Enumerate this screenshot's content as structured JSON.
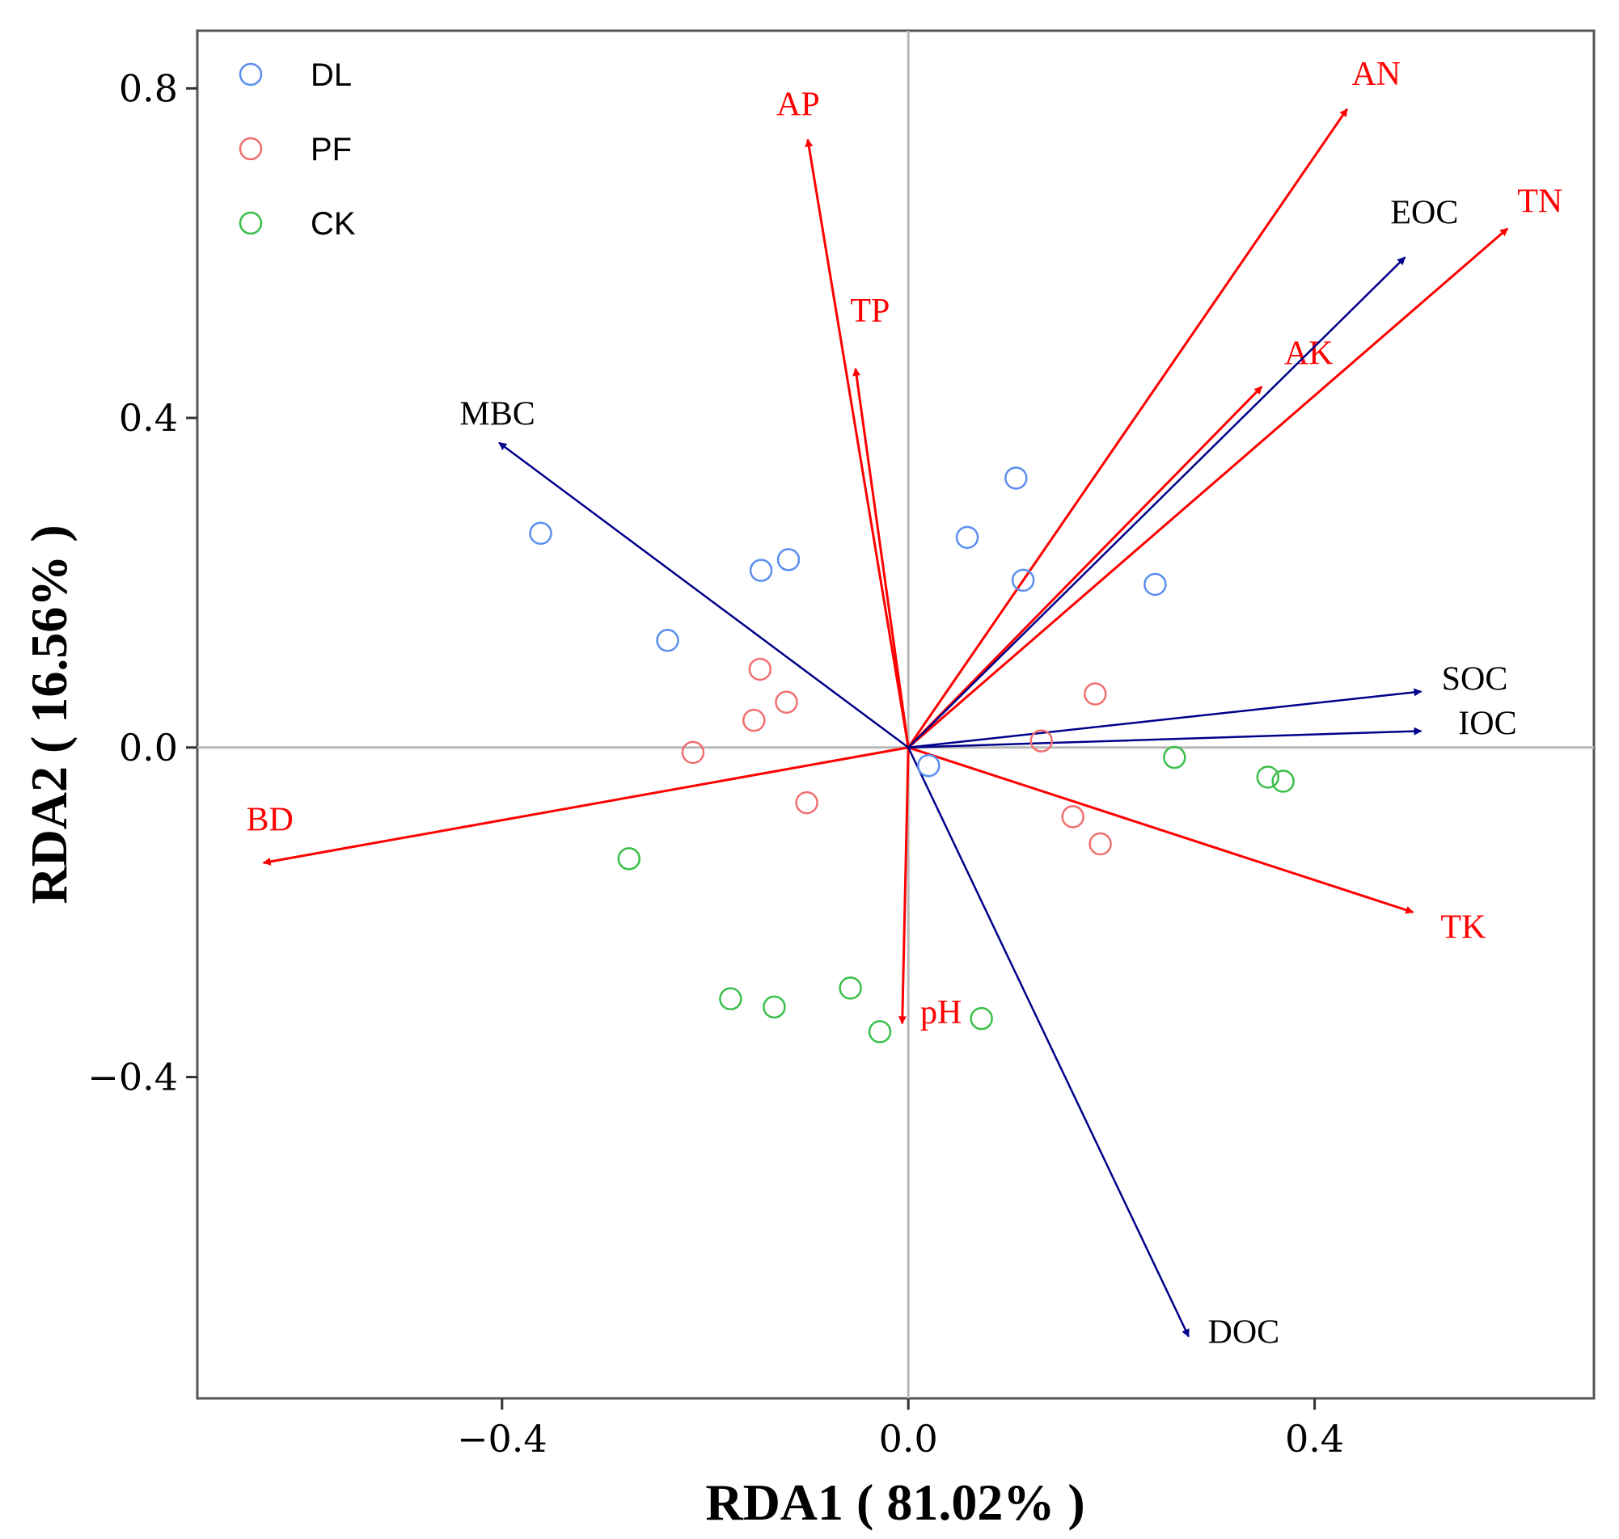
{
  "chart_data": {
    "type": "scatter",
    "title": "",
    "xlabel": "RDA1 ( 81.02% )",
    "ylabel": "RDA2 ( 16.56% )",
    "xlim": [
      -0.7,
      0.675
    ],
    "ylim": [
      -0.79,
      0.87
    ],
    "xticks": [
      {
        "value": -0.4,
        "label": "−0.4"
      },
      {
        "value": 0.0,
        "label": "0.0"
      },
      {
        "value": 0.4,
        "label": "0.4"
      }
    ],
    "yticks": [
      {
        "value": -0.4,
        "label": "−0.4"
      },
      {
        "value": 0.0,
        "label": "0.0"
      },
      {
        "value": 0.4,
        "label": "0.4"
      },
      {
        "value": 0.8,
        "label": "0.8"
      }
    ],
    "legend_position": "top-left",
    "series": [
      {
        "name": "DL",
        "color": "#5b8ff0",
        "points": [
          [
            -0.362,
            0.26
          ],
          [
            -0.237,
            0.13
          ],
          [
            -0.145,
            0.215
          ],
          [
            -0.118,
            0.228
          ],
          [
            0.058,
            0.255
          ],
          [
            0.106,
            0.327
          ],
          [
            0.113,
            0.203
          ],
          [
            0.243,
            0.198
          ],
          [
            0.02,
            -0.022
          ]
        ]
      },
      {
        "name": "PF",
        "color": "#f07070",
        "points": [
          [
            -0.212,
            -0.006
          ],
          [
            -0.152,
            0.033
          ],
          [
            -0.146,
            0.095
          ],
          [
            -0.12,
            0.055
          ],
          [
            -0.1,
            -0.067
          ],
          [
            0.131,
            0.008
          ],
          [
            0.184,
            0.065
          ],
          [
            0.162,
            -0.084
          ],
          [
            0.189,
            -0.117
          ]
        ]
      },
      {
        "name": "CK",
        "color": "#3bbf4a",
        "points": [
          [
            -0.275,
            -0.135
          ],
          [
            -0.175,
            -0.305
          ],
          [
            -0.132,
            -0.315
          ],
          [
            -0.057,
            -0.292
          ],
          [
            -0.028,
            -0.345
          ],
          [
            0.072,
            -0.329
          ],
          [
            0.262,
            -0.012
          ],
          [
            0.354,
            -0.036
          ],
          [
            0.369,
            -0.041
          ]
        ]
      }
    ],
    "arrows": [
      {
        "name": "AP",
        "x": -0.099,
        "y": 0.738,
        "color": "#ff0000"
      },
      {
        "name": "TP",
        "x": -0.052,
        "y": 0.46,
        "color": "#ff0000"
      },
      {
        "name": "AN",
        "x": 0.432,
        "y": 0.775,
        "color": "#ff0000"
      },
      {
        "name": "TN",
        "x": 0.59,
        "y": 0.63,
        "color": "#ff0000"
      },
      {
        "name": "AK",
        "x": 0.348,
        "y": 0.438,
        "color": "#ff0000"
      },
      {
        "name": "BD",
        "x": -0.635,
        "y": -0.14,
        "color": "#ff0000"
      },
      {
        "name": "TK",
        "x": 0.497,
        "y": -0.2,
        "color": "#ff0000"
      },
      {
        "name": "pH",
        "x": -0.006,
        "y": -0.335,
        "color": "#ff0000"
      },
      {
        "name": "EOC",
        "x": 0.489,
        "y": 0.595,
        "color": "#00008b"
      },
      {
        "name": "MBC",
        "x": -0.403,
        "y": 0.37,
        "color": "#00008b"
      },
      {
        "name": "SOC",
        "x": 0.505,
        "y": 0.068,
        "color": "#00008b"
      },
      {
        "name": "IOC",
        "x": 0.505,
        "y": 0.02,
        "color": "#00008b"
      },
      {
        "name": "DOC",
        "x": 0.276,
        "y": -0.715,
        "color": "#00008b"
      }
    ]
  }
}
